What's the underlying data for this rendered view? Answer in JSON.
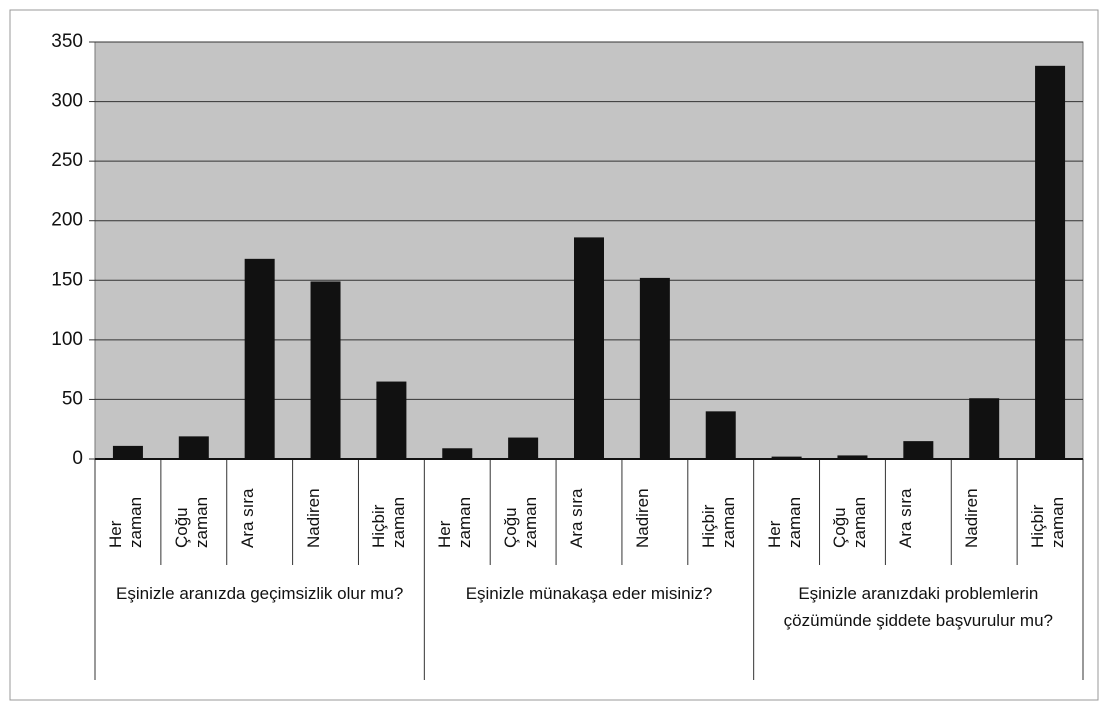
{
  "chart_data": {
    "type": "bar",
    "groups": [
      {
        "name": "Eşinizle aranızda geçimsizlik olur mu?",
        "categories": [
          "Her zaman",
          "Çoğu zaman",
          "Ara sıra",
          "Nadiren",
          "Hiçbir zaman"
        ],
        "values": [
          11,
          19,
          168,
          149,
          65
        ]
      },
      {
        "name": "Eşinizle münakaşa eder misiniz?",
        "categories": [
          "Her zaman",
          "Çoğu zaman",
          "Ara sıra",
          "Nadiren",
          "Hiçbir zaman"
        ],
        "values": [
          9,
          18,
          186,
          152,
          40
        ]
      },
      {
        "name": "Eşinizle aranızdaki problemlerin çözümünde şiddete başvurulur mu?",
        "categories": [
          "Her zaman",
          "Çoğu zaman",
          "Ara sıra",
          "Nadiren",
          "Hiçbir zaman"
        ],
        "values": [
          2,
          3,
          15,
          51,
          330
        ]
      }
    ],
    "color": "#111111",
    "ylim": [
      0,
      350
    ],
    "yticks": [
      0,
      50,
      100,
      150,
      200,
      250,
      300,
      350
    ],
    "grid": true
  }
}
